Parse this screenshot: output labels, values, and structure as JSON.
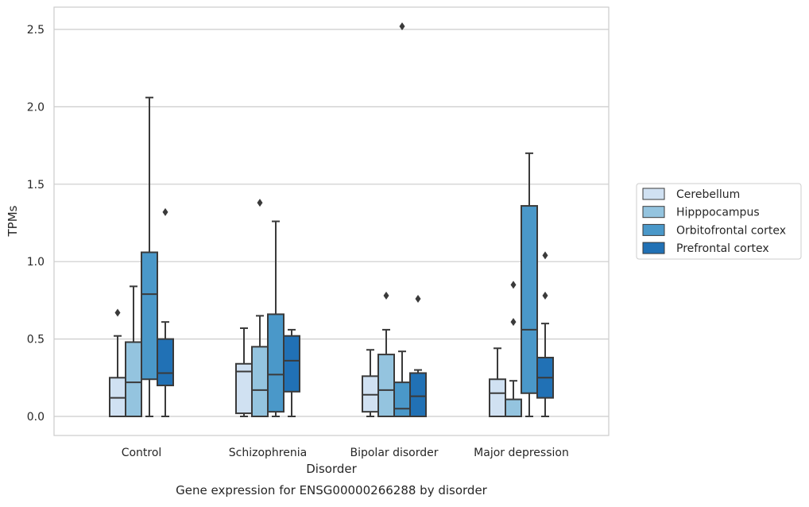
{
  "chart_data": {
    "type": "box",
    "title": "Gene expression for ENSG00000266288 by disorder",
    "xlabel": "Disorder",
    "ylabel": "TPMs",
    "categories": [
      "Control",
      "Schizophrenia",
      "Bipolar disorder",
      "Major depression"
    ],
    "ylim": [
      -0.12,
      2.64
    ],
    "yticks": [
      "0.0",
      "0.5",
      "1.0",
      "1.5",
      "2.0",
      "2.5"
    ],
    "grid": "horizontal",
    "legend_position": "right",
    "series": [
      {
        "name": "Cerebellum",
        "color": "#d0e1f2",
        "boxes": [
          {
            "whisker_low": 0.0,
            "q1": 0.0,
            "median": 0.12,
            "q3": 0.25,
            "whisker_high": 0.52,
            "outliers": [
              0.67
            ]
          },
          {
            "whisker_low": 0.0,
            "q1": 0.02,
            "median": 0.29,
            "q3": 0.34,
            "whisker_high": 0.57,
            "outliers": []
          },
          {
            "whisker_low": 0.0,
            "q1": 0.03,
            "median": 0.14,
            "q3": 0.26,
            "whisker_high": 0.43,
            "outliers": []
          },
          {
            "whisker_low": 0.0,
            "q1": 0.0,
            "median": 0.15,
            "q3": 0.24,
            "whisker_high": 0.44,
            "outliers": []
          }
        ]
      },
      {
        "name": "Hipppocampus",
        "color": "#94c4df",
        "boxes": [
          {
            "whisker_low": 0.0,
            "q1": 0.0,
            "median": 0.22,
            "q3": 0.48,
            "whisker_high": 0.84,
            "outliers": []
          },
          {
            "whisker_low": 0.0,
            "q1": 0.0,
            "median": 0.17,
            "q3": 0.45,
            "whisker_high": 0.65,
            "outliers": [
              1.38
            ]
          },
          {
            "whisker_low": 0.0,
            "q1": 0.0,
            "median": 0.17,
            "q3": 0.4,
            "whisker_high": 0.56,
            "outliers": [
              0.78
            ]
          },
          {
            "whisker_low": 0.0,
            "q1": 0.0,
            "median": 0.0,
            "q3": 0.11,
            "whisker_high": 0.23,
            "outliers": [
              0.61,
              0.85
            ]
          }
        ]
      },
      {
        "name": "Orbitofrontal cortex",
        "color": "#4a98c9",
        "boxes": [
          {
            "whisker_low": 0.0,
            "q1": 0.24,
            "median": 0.79,
            "q3": 1.06,
            "whisker_high": 2.06,
            "outliers": []
          },
          {
            "whisker_low": 0.0,
            "q1": 0.03,
            "median": 0.27,
            "q3": 0.66,
            "whisker_high": 1.26,
            "outliers": []
          },
          {
            "whisker_low": 0.0,
            "q1": 0.0,
            "median": 0.05,
            "q3": 0.22,
            "whisker_high": 0.42,
            "outliers": [
              2.52
            ]
          },
          {
            "whisker_low": 0.0,
            "q1": 0.15,
            "median": 0.56,
            "q3": 1.36,
            "whisker_high": 1.7,
            "outliers": []
          }
        ]
      },
      {
        "name": "Prefrontal cortex",
        "color": "#2171b5",
        "boxes": [
          {
            "whisker_low": 0.0,
            "q1": 0.2,
            "median": 0.28,
            "q3": 0.5,
            "whisker_high": 0.61,
            "outliers": [
              1.32
            ]
          },
          {
            "whisker_low": 0.0,
            "q1": 0.16,
            "median": 0.36,
            "q3": 0.52,
            "whisker_high": 0.56,
            "outliers": []
          },
          {
            "whisker_low": 0.0,
            "q1": 0.0,
            "median": 0.13,
            "q3": 0.28,
            "whisker_high": 0.3,
            "outliers": [
              0.76
            ]
          },
          {
            "whisker_low": 0.0,
            "q1": 0.12,
            "median": 0.25,
            "q3": 0.38,
            "whisker_high": 0.6,
            "outliers": [
              0.78,
              1.04
            ]
          }
        ]
      }
    ]
  }
}
